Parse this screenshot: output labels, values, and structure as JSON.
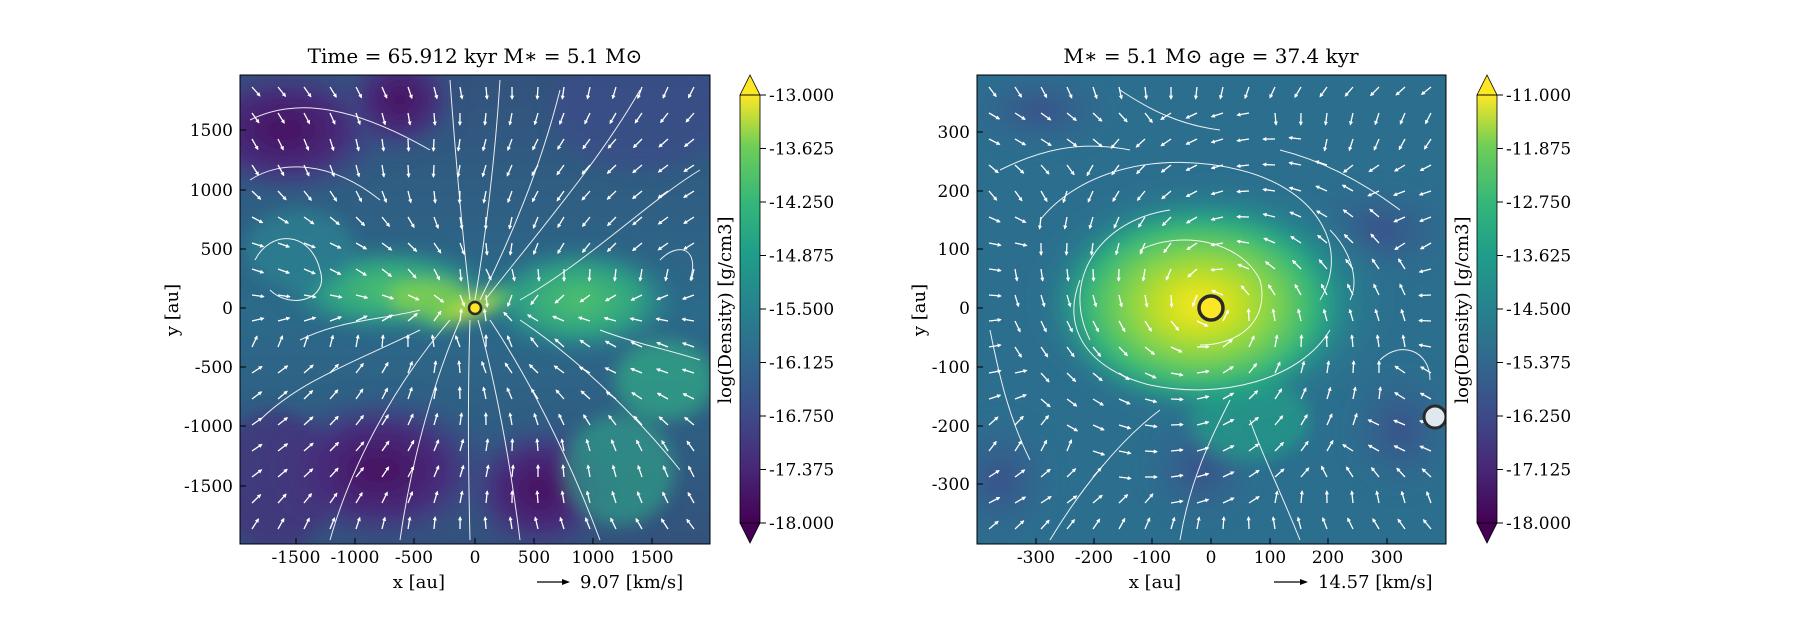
{
  "figure": {
    "panels": [
      {
        "title": "Time = 65.912 kyr    M$_*$ = 5.1 M$_\\odot$",
        "title_display": "Time = 65.912 kyr    M∗ = 5.1 M⊙",
        "xlabel": "x [au]",
        "ylabel": "y [au]",
        "xticks": [
          "-1500",
          "-1000",
          "-500",
          "0",
          "500",
          "1000",
          "1500"
        ],
        "yticks": [
          "1500",
          "1000",
          "500",
          "0",
          "-500",
          "-1000",
          "-1500"
        ],
        "scale_arrow_label": "9.07 [km/s]",
        "colorbar_label": "log(Density) [g/cm3]",
        "colorbar_ticks": [
          "-13.000",
          "-13.625",
          "-14.250",
          "-14.875",
          "-15.500",
          "-16.125",
          "-16.750",
          "-17.375",
          "-18.000"
        ],
        "sink_particles": [
          "central-star"
        ]
      },
      {
        "title_display": "M∗ = 5.1 M⊙          age = 37.4 kyr",
        "xlabel": "x [au]",
        "ylabel": "y [au]",
        "xticks": [
          "-300",
          "-200",
          "-100",
          "0",
          "100",
          "200",
          "300"
        ],
        "yticks": [
          "300",
          "200",
          "100",
          "0",
          "-100",
          "-200",
          "-300"
        ],
        "scale_arrow_label": "14.57 [km/s]",
        "colorbar_label": "log(Density) [g/cm3]",
        "colorbar_ticks": [
          "-11.000",
          "-11.875",
          "-12.750",
          "-13.625",
          "-14.500",
          "-15.375",
          "-16.250",
          "-17.125",
          "-18.000"
        ],
        "sink_particles": [
          "central-star",
          "secondary-sink"
        ]
      }
    ]
  },
  "chart_data": [
    {
      "type": "heatmap",
      "title": "Time = 65.912 kyr    M∗ = 5.1 M⊙",
      "xlabel": "x [au]",
      "ylabel": "y [au]",
      "xlim": [
        -2000,
        2000
      ],
      "ylim": [
        -2000,
        2000
      ],
      "colorbar": {
        "label": "log(Density) [g/cm3]",
        "range": [
          -18.0,
          -13.0
        ],
        "colormap": "viridis",
        "extend": "both"
      },
      "overlay": "velocity streamlines and vectors (white)",
      "velocity_scale": {
        "value": 9.07,
        "unit": "km/s"
      },
      "sinks": [
        {
          "x": 0,
          "y": 0
        }
      ]
    },
    {
      "type": "heatmap",
      "title": "M∗ = 5.1 M⊙          age = 37.4 kyr",
      "xlabel": "x [au]",
      "ylabel": "y [au]",
      "xlim": [
        -400,
        400
      ],
      "ylim": [
        -400,
        400
      ],
      "colorbar": {
        "label": "log(Density) [g/cm3]",
        "range": [
          -18.0,
          -11.0
        ],
        "colormap": "viridis",
        "extend": "both"
      },
      "overlay": "velocity streamlines and vectors (white)",
      "velocity_scale": {
        "value": 14.57,
        "unit": "km/s"
      },
      "sinks": [
        {
          "x": 0,
          "y": 0
        },
        {
          "x": 380,
          "y": -185
        }
      ]
    }
  ],
  "colors": {
    "arrows": "#ffffff",
    "sink_edge": "#2a2a2a",
    "secondary_sink_fill": "#dfe8ee"
  }
}
